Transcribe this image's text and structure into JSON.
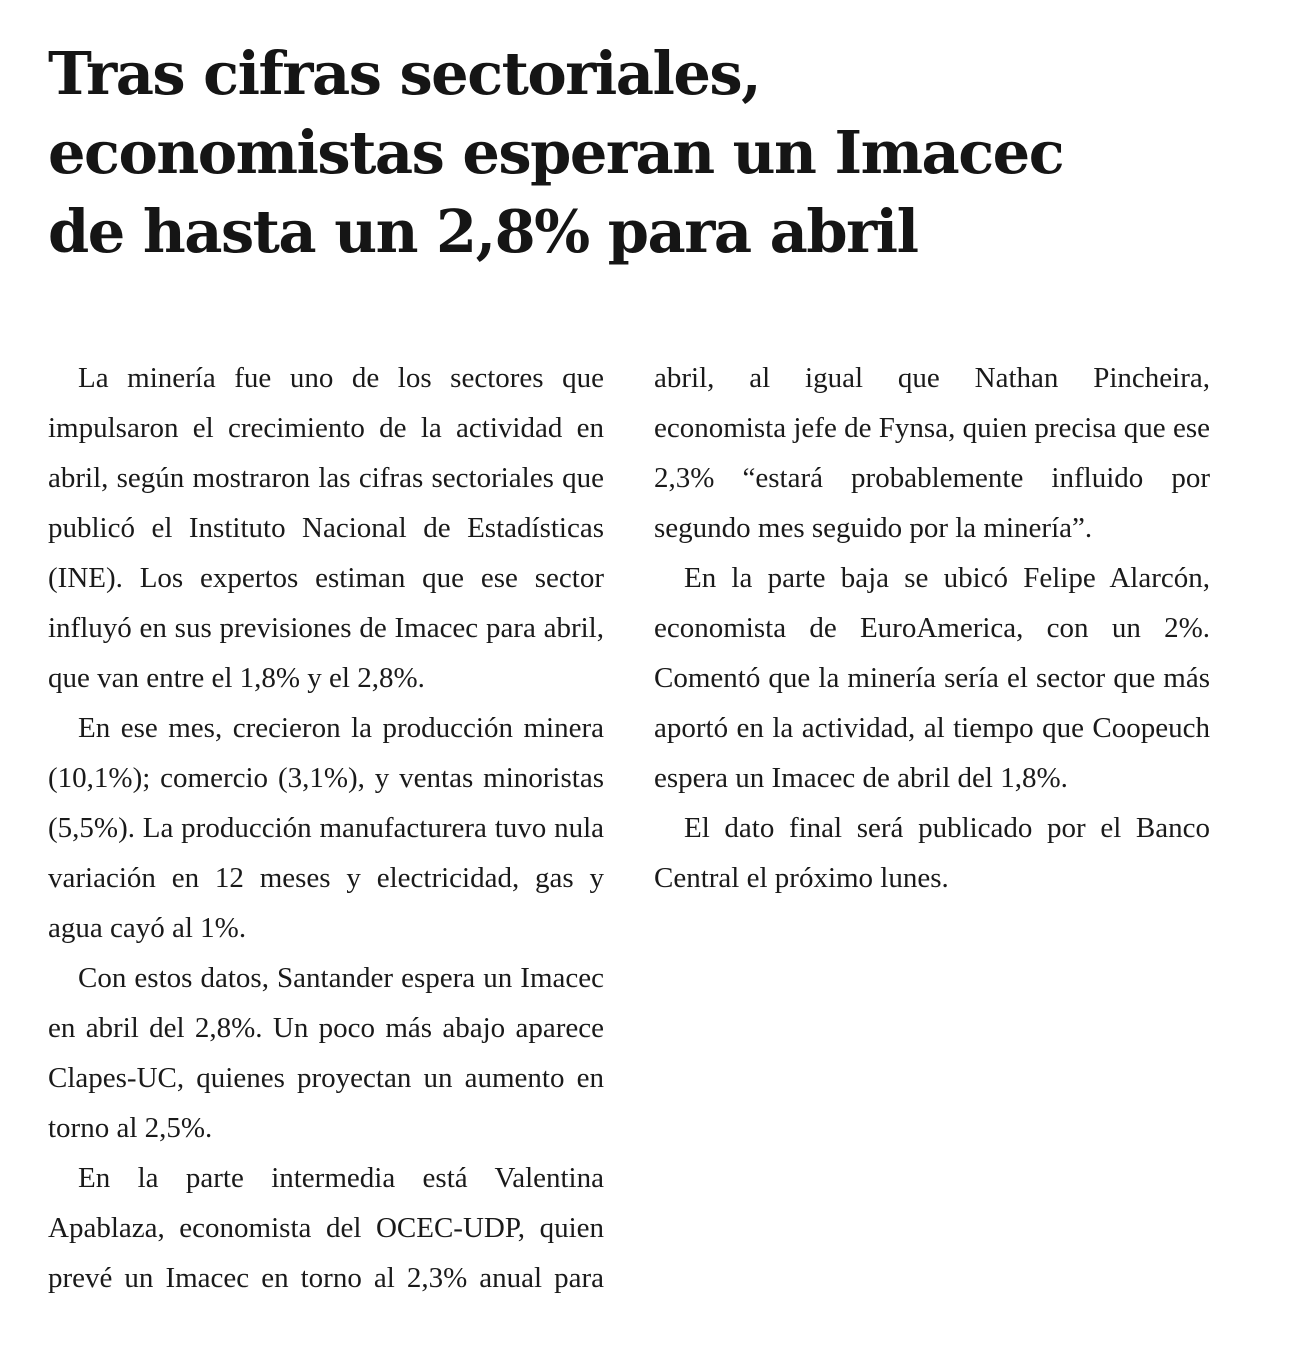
{
  "headline": {
    "lines": [
      "Tras cifras sectoriales,",
      "economistas esperan un Imacec",
      "de hasta un 2,8% para abril"
    ]
  },
  "article": {
    "paragraphs": [
      "La minería fue uno de los sectores que impulsaron el crecimiento de la actividad en abril, según mostraron las cifras sectoriales que publicó el Instituto Nacional de Estadísticas (INE). Los expertos estiman que ese sector influyó en sus previsiones de Imacec para abril, que van entre el 1,8% y el 2,8%.",
      "En ese mes, crecieron la producción minera (10,1%); comercio (3,1%), y ventas minoristas (5,5%). La producción manufacturera tuvo nula variación en 12 meses y electricidad, gas y agua cayó al 1%.",
      "Con estos datos, Santander espera un Imacec en abril del 2,8%. Un poco más abajo aparece Clapes-UC, quienes proyectan un aumento en torno al 2,5%.",
      "En la parte intermedia está Valentina Apablaza, economista del OCEC-UDP, quien prevé un Imacec en torno al 2,3% anual para abril, al igual que Nathan Pincheira, economista jefe de Fynsa, quien precisa que ese 2,3% “estará probablemente influido por segundo mes seguido por la minería”.",
      "En la parte baja se ubicó Felipe Alarcón, economista de EuroAmerica, con un 2%. Comentó que la minería sería el sector que más aportó en la actividad, al tiempo que Coopeuch espera un Imacec de abril del 1,8%.",
      "El dato final será publicado por el Banco Central el próximo lunes."
    ]
  }
}
